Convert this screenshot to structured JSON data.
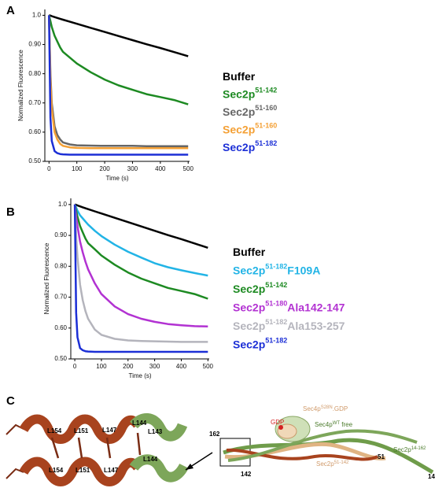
{
  "chart_data": [
    {
      "type": "line",
      "label": "A",
      "xlabel": "Time (s)",
      "ylabel": "Normalized Fluorescence",
      "x": [
        0,
        5,
        10,
        20,
        30,
        40,
        50,
        75,
        100,
        150,
        200,
        250,
        300,
        350,
        400,
        450,
        500
      ],
      "xlim": [
        -15,
        505
      ],
      "xticks": [
        0,
        100,
        200,
        300,
        400,
        500
      ],
      "ylim": [
        0.5,
        1.02
      ],
      "yticks": [
        {
          "value": 0.5,
          "label": "0.50"
        },
        {
          "value": 0.6,
          "label": "0.60"
        },
        {
          "value": 0.7,
          "label": "0.70"
        },
        {
          "value": 0.8,
          "label": "0.80"
        },
        {
          "value": 0.9,
          "label": "0.90"
        },
        {
          "value": 1.0,
          "label": "1.0"
        }
      ],
      "series": [
        {
          "name": "Buffer",
          "color": "#000000",
          "values": [
            1.0,
            0.999,
            0.997,
            0.994,
            0.991,
            0.988,
            0.985,
            0.978,
            0.971,
            0.957,
            0.943,
            0.929,
            0.915,
            0.901,
            0.888,
            0.874,
            0.86
          ]
        },
        {
          "name": "Sec2p",
          "sup": "51-142",
          "color": "#1d8a22",
          "values": [
            1.0,
            0.98,
            0.96,
            0.93,
            0.91,
            0.89,
            0.875,
            0.855,
            0.835,
            0.805,
            0.78,
            0.76,
            0.745,
            0.73,
            0.72,
            0.71,
            0.695
          ]
        },
        {
          "name": "Sec2p",
          "sup": "51-160",
          "color": "#666666",
          "values": [
            1.0,
            0.8,
            0.7,
            0.62,
            0.59,
            0.575,
            0.565,
            0.558,
            0.555,
            0.554,
            0.553,
            0.553,
            0.553,
            0.552,
            0.552,
            0.552,
            0.552
          ]
        },
        {
          "name": "Sec2p",
          "sup": "51-160",
          "color": "#f4a035",
          "values": [
            1.0,
            0.78,
            0.68,
            0.6,
            0.575,
            0.56,
            0.553,
            0.548,
            0.546,
            0.545,
            0.545,
            0.545,
            0.545,
            0.545,
            0.545,
            0.545,
            0.545
          ]
        },
        {
          "name": "Sec2p",
          "sup": "51-182",
          "color": "#1c2fd6",
          "values": [
            1.0,
            0.65,
            0.57,
            0.535,
            0.528,
            0.525,
            0.524,
            0.523,
            0.523,
            0.523,
            0.523,
            0.523,
            0.523,
            0.523,
            0.523,
            0.523,
            0.523
          ]
        }
      ]
    },
    {
      "type": "line",
      "label": "B",
      "xlabel": "Time (s)",
      "ylabel": "Normalized Fluorescence",
      "x": [
        0,
        5,
        10,
        20,
        30,
        40,
        50,
        75,
        100,
        150,
        200,
        250,
        300,
        350,
        400,
        450,
        500
      ],
      "xlim": [
        -15,
        505
      ],
      "xticks": [
        0,
        100,
        200,
        300,
        400,
        500
      ],
      "ylim": [
        0.5,
        1.02
      ],
      "yticks": [
        {
          "value": 0.5,
          "label": "0.50"
        },
        {
          "value": 0.6,
          "label": "0.60"
        },
        {
          "value": 0.7,
          "label": "0.70"
        },
        {
          "value": 0.8,
          "label": "0.80"
        },
        {
          "value": 0.9,
          "label": "0.90"
        },
        {
          "value": 1.0,
          "label": "1.0"
        }
      ],
      "series": [
        {
          "name": "Buffer",
          "color": "#000000",
          "values": [
            1.0,
            0.999,
            0.997,
            0.994,
            0.991,
            0.988,
            0.985,
            0.978,
            0.971,
            0.957,
            0.943,
            0.929,
            0.915,
            0.901,
            0.888,
            0.874,
            0.86
          ]
        },
        {
          "name": "Sec2p",
          "sup": "51-182",
          "suffix": "F109A",
          "color": "#22b4e6",
          "values": [
            1.0,
            0.99,
            0.98,
            0.965,
            0.955,
            0.945,
            0.935,
            0.915,
            0.898,
            0.87,
            0.847,
            0.828,
            0.81,
            0.797,
            0.787,
            0.778,
            0.77
          ]
        },
        {
          "name": "Sec2p",
          "sup": "51-142",
          "color": "#1d8a22",
          "values": [
            1.0,
            0.98,
            0.96,
            0.93,
            0.91,
            0.89,
            0.875,
            0.855,
            0.835,
            0.805,
            0.78,
            0.76,
            0.745,
            0.73,
            0.72,
            0.71,
            0.695
          ]
        },
        {
          "name": "Sec2p",
          "sup": "51-180",
          "suffix": "Ala142-147",
          "color": "#b232d2",
          "values": [
            1.0,
            0.96,
            0.93,
            0.88,
            0.845,
            0.815,
            0.79,
            0.745,
            0.71,
            0.67,
            0.645,
            0.63,
            0.62,
            0.613,
            0.609,
            0.606,
            0.605
          ]
        },
        {
          "name": "Sec2p",
          "sup": "51-182",
          "suffix": "Ala153-257",
          "color": "#b4b4bc",
          "values": [
            1.0,
            0.9,
            0.83,
            0.74,
            0.69,
            0.655,
            0.63,
            0.595,
            0.578,
            0.565,
            0.56,
            0.558,
            0.557,
            0.556,
            0.555,
            0.555,
            0.555
          ]
        },
        {
          "name": "Sec2p",
          "sup": "51-182",
          "color": "#1c2fd6",
          "values": [
            1.0,
            0.65,
            0.57,
            0.535,
            0.528,
            0.525,
            0.524,
            0.523,
            0.523,
            0.523,
            0.523,
            0.523,
            0.523,
            0.523,
            0.523,
            0.523,
            0.523
          ]
        }
      ]
    }
  ],
  "panel_c": {
    "label": "C",
    "residues_top": [
      "L154",
      "L151",
      "L147",
      "L144",
      "L143"
    ],
    "residues_bottom": [
      "L154",
      "L151",
      "L147",
      "L144"
    ],
    "sec4_gdp": {
      "name": "Sec4p",
      "sup": "S28N",
      "suffix": ".GDP"
    },
    "gdp": "GDP",
    "sec4_free": {
      "name": "Sec4p",
      "sup": "WT",
      "suffix": " free"
    },
    "sec2_long": {
      "name": "Sec2p",
      "sup": "14-162"
    },
    "sec2_short": {
      "name": "Sec2p",
      "sup": "51-142"
    },
    "numbers": [
      "162",
      "142",
      "51",
      "14"
    ]
  }
}
